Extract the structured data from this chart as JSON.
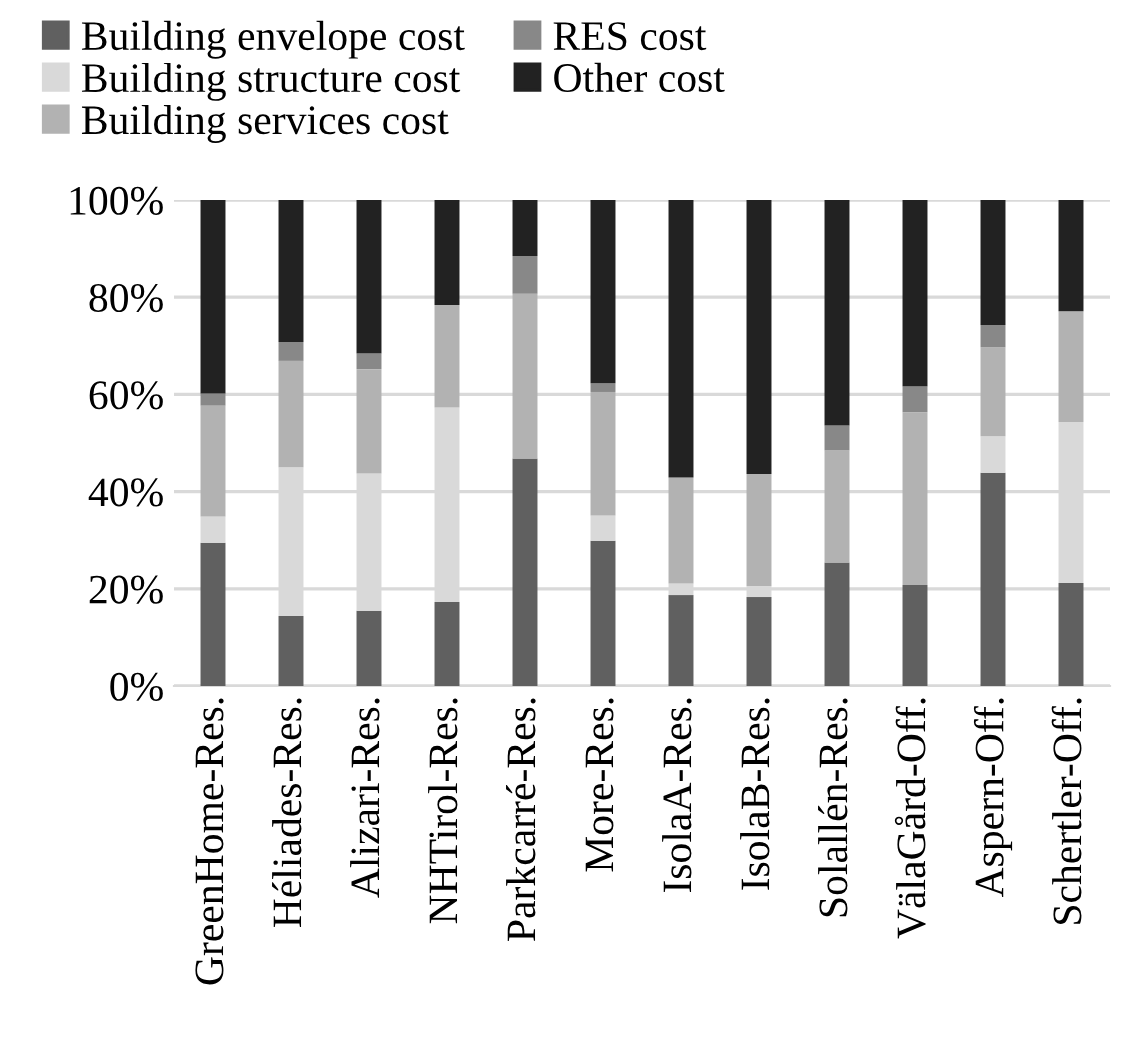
{
  "chart_data": {
    "type": "bar",
    "stacked": true,
    "categories": [
      "GreenHome-Res.",
      "Héliades-Res.",
      "Alizari-Res.",
      "NHTirol-Res.",
      "Parkcarré-Res.",
      "More-Res.",
      "IsolaA-Res.",
      "IsolaB-Res.",
      "Solallén-Res.",
      "VälaGård-Off.",
      "Aspern-Off.",
      "Schertler-Off."
    ],
    "series": [
      {
        "name": "Building envelope cost",
        "color": "#606060",
        "values": [
          29.5,
          14.4,
          15.5,
          17.3,
          46.8,
          29.9,
          18.7,
          18.3,
          25.4,
          20.8,
          43.9,
          21.2
        ]
      },
      {
        "name": "Building structure cost",
        "color": "#d9d9d9",
        "values": [
          5.4,
          30.6,
          28.2,
          40.0,
          0,
          5.2,
          2.4,
          2.2,
          0,
          0,
          7.5,
          33.1
        ]
      },
      {
        "name": "Building services cost",
        "color": "#b2b2b2",
        "values": [
          22.8,
          21.9,
          21.5,
          21.1,
          33.9,
          25.4,
          21.8,
          23.1,
          23.1,
          35.5,
          18.3,
          22.8
        ]
      },
      {
        "name": "RES cost",
        "color": "#888888",
        "values": [
          2.5,
          3.9,
          3.2,
          0,
          7.8,
          1.8,
          0,
          0,
          5.1,
          5.4,
          4.6,
          0
        ]
      },
      {
        "name": "Other cost",
        "color": "#222222",
        "values": [
          39.8,
          29.2,
          31.6,
          21.6,
          11.5,
          37.7,
          57.1,
          56.4,
          46.4,
          38.3,
          25.7,
          22.9
        ]
      }
    ],
    "ylim": [
      0,
      100
    ],
    "yticks": [
      {
        "value": 0,
        "label": "0%"
      },
      {
        "value": 20,
        "label": "20%"
      },
      {
        "value": 40,
        "label": "40%"
      },
      {
        "value": 60,
        "label": "60%"
      },
      {
        "value": 80,
        "label": "80%"
      },
      {
        "value": 100,
        "label": "100%"
      }
    ],
    "grid": "y",
    "legend": "top"
  }
}
